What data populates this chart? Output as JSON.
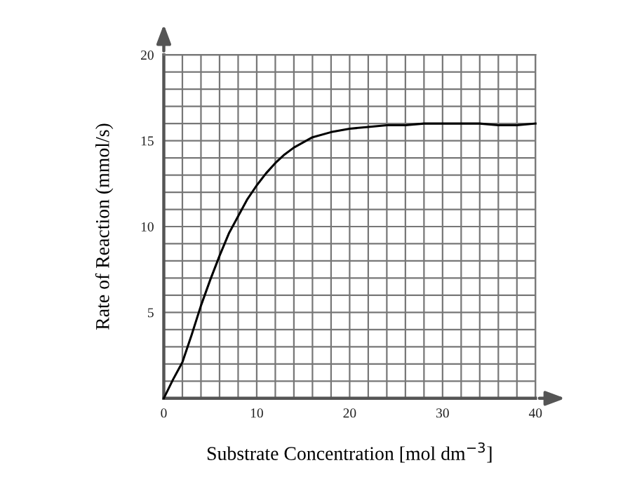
{
  "chart_data": {
    "type": "line",
    "xlabel": "Substrate Concentration [mol dm$^{−3}$]",
    "ylabel": "Rate of Reaction (mmol/s)",
    "x": [
      0,
      1,
      2,
      3,
      4,
      5,
      6,
      7,
      8,
      9,
      10,
      11,
      12,
      13,
      14,
      16,
      18,
      20,
      22,
      24,
      26,
      28,
      30,
      32,
      34,
      36,
      38,
      40
    ],
    "series": [
      {
        "color": "#000000",
        "values": [
          0,
          1.1,
          2.1,
          3.7,
          5.4,
          6.9,
          8.3,
          9.6,
          10.6,
          11.6,
          12.4,
          13.1,
          13.7,
          14.2,
          14.6,
          15.2,
          15.5,
          15.7,
          15.8,
          15.9,
          15.9,
          16.0,
          16.0,
          16.0,
          16.0,
          15.9,
          15.9,
          16.0
        ]
      }
    ],
    "xlim": [
      0,
      40
    ],
    "ylim": [
      0,
      20
    ],
    "xticks": [
      0,
      {
        "value": 2,
        "label": null
      },
      {
        "value": 4,
        "label": null
      },
      {
        "value": 6,
        "label": null
      },
      {
        "value": 8,
        "label": null
      },
      10,
      {
        "value": 12,
        "label": null
      },
      {
        "value": 14,
        "label": null
      },
      {
        "value": 16,
        "label": null
      },
      {
        "value": 18,
        "label": null
      },
      20,
      {
        "value": 22,
        "label": null
      },
      {
        "value": 24,
        "label": null
      },
      {
        "value": 26,
        "label": null
      },
      {
        "value": 28,
        "label": null
      },
      30,
      {
        "value": 32,
        "label": null
      },
      {
        "value": 34,
        "label": null
      },
      {
        "value": 36,
        "label": null
      },
      {
        "value": 38,
        "label": null
      },
      40
    ],
    "yticks": [
      {
        "value": 1,
        "label": null
      },
      {
        "value": 2,
        "label": null
      },
      {
        "value": 3,
        "label": null
      },
      {
        "value": 4,
        "label": null
      },
      5,
      {
        "value": 6,
        "label": null
      },
      {
        "value": 7,
        "label": null
      },
      {
        "value": 8,
        "label": null
      },
      {
        "value": 9,
        "label": null
      },
      10,
      {
        "value": 11,
        "label": null
      },
      {
        "value": 12,
        "label": null
      },
      {
        "value": 13,
        "label": null
      },
      {
        "value": 14,
        "label": null
      },
      15,
      {
        "value": 16,
        "label": null
      },
      {
        "value": 17,
        "label": null
      },
      {
        "value": 18,
        "label": null
      },
      {
        "value": 19,
        "label": null
      },
      20
    ],
    "grid": true,
    "marker": "none",
    "line_style": "solid"
  }
}
